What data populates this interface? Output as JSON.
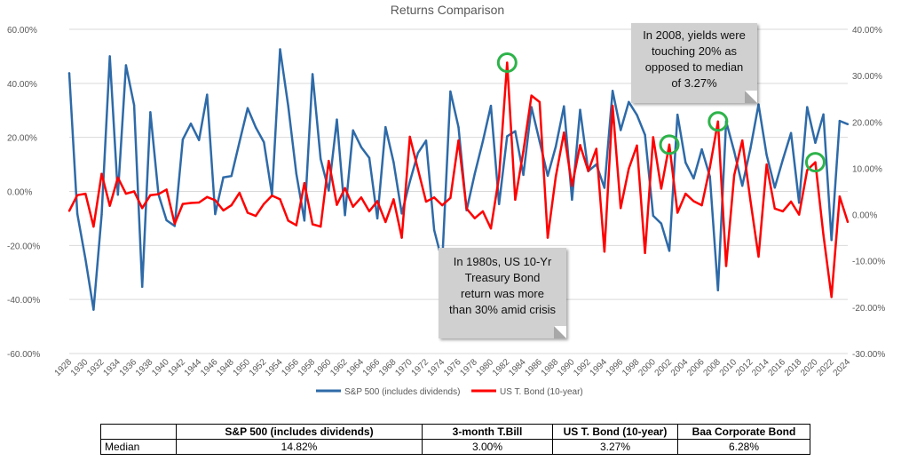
{
  "chart_data": {
    "type": "line",
    "title": "Returns Comparison",
    "x": [
      1928,
      1929,
      1930,
      1931,
      1932,
      1933,
      1934,
      1935,
      1936,
      1937,
      1938,
      1939,
      1940,
      1941,
      1942,
      1943,
      1944,
      1945,
      1946,
      1947,
      1948,
      1949,
      1950,
      1951,
      1952,
      1953,
      1954,
      1955,
      1956,
      1957,
      1958,
      1959,
      1960,
      1961,
      1962,
      1963,
      1964,
      1965,
      1966,
      1967,
      1968,
      1969,
      1970,
      1971,
      1972,
      1973,
      1974,
      1975,
      1976,
      1977,
      1978,
      1979,
      1980,
      1981,
      1982,
      1983,
      1984,
      1985,
      1986,
      1987,
      1988,
      1989,
      1990,
      1991,
      1992,
      1993,
      1994,
      1995,
      1996,
      1997,
      1998,
      1999,
      2000,
      2001,
      2002,
      2003,
      2004,
      2005,
      2006,
      2007,
      2008,
      2009,
      2010,
      2011,
      2012,
      2013,
      2014,
      2015,
      2016,
      2017,
      2018,
      2019,
      2020,
      2021,
      2022,
      2023,
      2024
    ],
    "x_tick_labels": [
      "1928",
      "1930",
      "1932",
      "1934",
      "1936",
      "1938",
      "1940",
      "1942",
      "1944",
      "1946",
      "1948",
      "1950",
      "1952",
      "1954",
      "1956",
      "1958",
      "1960",
      "1962",
      "1964",
      "1966",
      "1968",
      "1970",
      "1972",
      "1974",
      "1976",
      "1978",
      "1980",
      "1982",
      "1984",
      "1986",
      "1988",
      "1990",
      "1992",
      "1994",
      "1996",
      "1998",
      "2000",
      "2002",
      "2004",
      "2006",
      "2008",
      "2010",
      "2012",
      "2014",
      "2016",
      "2018",
      "2020",
      "2022",
      "2024"
    ],
    "y_left_ticks": [
      "60.00%",
      "40.00%",
      "20.00%",
      "0.00%",
      "-20.00%",
      "-40.00%",
      "-60.00%"
    ],
    "y_right_ticks": [
      "40.00%",
      "30.00%",
      "20.00%",
      "10.00%",
      "0.00%",
      "-10.00%",
      "-20.00%",
      "-30.00%"
    ],
    "ylim_left": [
      -60,
      60
    ],
    "ylim_right": [
      -30,
      40
    ],
    "series": [
      {
        "name": "S&P 500 (includes dividends)",
        "axis": "left",
        "color": "#2e6aa8",
        "values": [
          43.8,
          -8.3,
          -25.1,
          -43.8,
          -8.6,
          50.0,
          -1.2,
          46.7,
          31.9,
          -35.3,
          29.3,
          -1.1,
          -10.7,
          -12.8,
          19.2,
          25.1,
          19.0,
          35.8,
          -8.4,
          5.2,
          5.7,
          18.3,
          30.8,
          23.7,
          18.2,
          -1.2,
          52.6,
          31.6,
          6.6,
          -10.8,
          43.4,
          12.0,
          0.3,
          26.6,
          -8.8,
          22.6,
          16.4,
          12.4,
          -10.0,
          23.8,
          10.8,
          -8.2,
          3.6,
          14.2,
          18.8,
          -14.3,
          -25.9,
          37.0,
          23.8,
          -7.0,
          6.5,
          18.5,
          31.7,
          -4.7,
          20.4,
          22.3,
          6.1,
          31.2,
          18.5,
          5.8,
          16.6,
          31.5,
          -3.1,
          30.2,
          7.5,
          10.0,
          1.3,
          37.2,
          22.7,
          33.1,
          28.3,
          20.9,
          -9.0,
          -11.9,
          -22.0,
          28.4,
          10.7,
          4.8,
          15.6,
          5.5,
          -36.6,
          25.9,
          14.8,
          2.1,
          15.9,
          32.2,
          13.5,
          1.4,
          11.8,
          21.6,
          -4.2,
          31.2,
          18.0,
          28.5,
          -18.0,
          26.1,
          24.9
        ]
      },
      {
        "name": "US T. Bond (10-year)",
        "axis": "right",
        "color": "#ff0000",
        "values": [
          0.8,
          4.2,
          4.5,
          -2.6,
          8.8,
          1.9,
          8.0,
          4.5,
          5.0,
          1.4,
          4.2,
          4.4,
          5.4,
          -2.0,
          2.3,
          2.5,
          2.6,
          3.8,
          3.1,
          0.9,
          2.0,
          4.7,
          0.4,
          -0.3,
          2.3,
          4.1,
          3.3,
          -1.3,
          -2.3,
          6.8,
          -2.1,
          -2.6,
          11.6,
          2.1,
          5.7,
          1.7,
          3.7,
          0.7,
          2.9,
          -1.6,
          3.3,
          -5.0,
          16.8,
          9.8,
          2.8,
          3.7,
          2.0,
          3.6,
          16.0,
          1.3,
          -0.8,
          0.7,
          -3.0,
          8.2,
          32.8,
          3.2,
          13.7,
          25.7,
          24.3,
          -5.0,
          8.2,
          17.7,
          6.2,
          15.0,
          9.4,
          14.2,
          -8.0,
          23.5,
          1.4,
          9.9,
          14.9,
          -8.3,
          16.7,
          5.6,
          15.1,
          0.4,
          4.5,
          2.9,
          2.0,
          10.2,
          20.1,
          -11.1,
          8.5,
          16.0,
          3.0,
          -9.1,
          10.8,
          1.3,
          0.7,
          2.8,
          0.0,
          9.6,
          11.3,
          -4.4,
          -17.8,
          3.9,
          -1.6
        ]
      }
    ],
    "annotations": [
      "In 2008, yields were touching 20% as opposed to median of 3.27%",
      "In 1980s, US 10-Yr Treasury Bond return was more than 30% amid crisis"
    ],
    "highlighted_points": [
      1982,
      2002,
      2008,
      2020
    ]
  },
  "callouts": {
    "top_lines": [
      "In 2008, yields were",
      "touching 20% as",
      "opposed to median",
      "of 3.27%"
    ],
    "bottom_lines": [
      "In 1980s, US 10-Yr",
      "Treasury Bond",
      "return was more",
      "than 30% amid crisis"
    ]
  },
  "median_table": {
    "headers": [
      "",
      "S&P 500 (includes dividends)",
      "3-month T.Bill",
      "US T. Bond (10-year)",
      "Baa Corporate Bond"
    ],
    "row_label": "Median",
    "values": [
      "14.82%",
      "3.00%",
      "3.27%",
      "6.28%"
    ]
  }
}
